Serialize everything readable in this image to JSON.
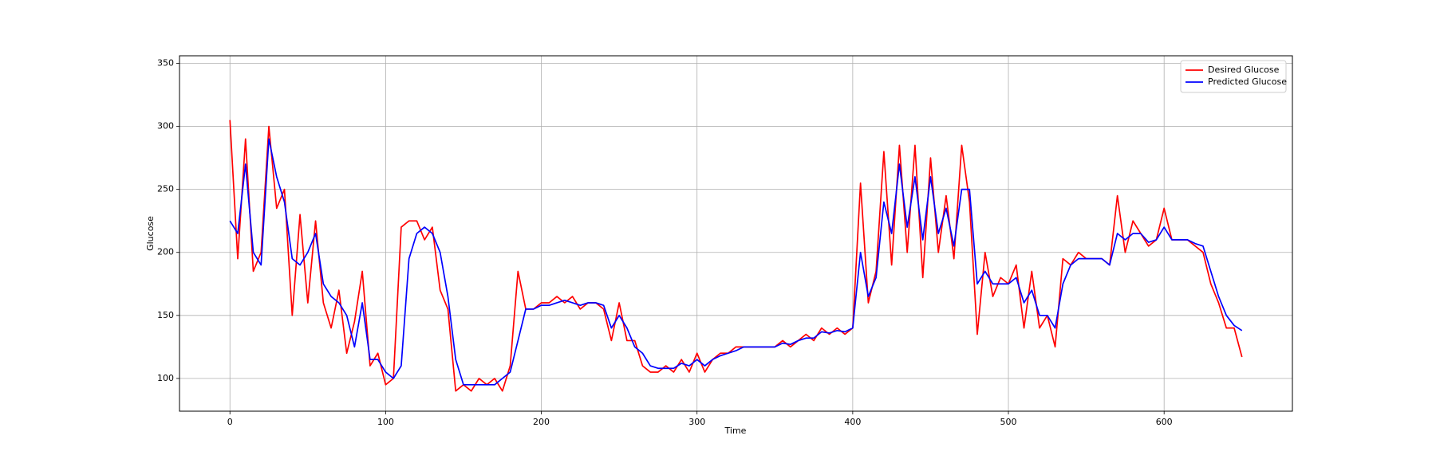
{
  "chart_data": {
    "type": "line",
    "xlabel": "Time",
    "ylabel": "Glucose",
    "x": [
      0,
      5,
      10,
      15,
      20,
      25,
      30,
      35,
      40,
      45,
      50,
      55,
      60,
      65,
      70,
      75,
      80,
      85,
      90,
      95,
      100,
      105,
      110,
      115,
      120,
      125,
      130,
      135,
      140,
      145,
      150,
      155,
      160,
      165,
      170,
      175,
      180,
      185,
      190,
      195,
      200,
      205,
      210,
      215,
      220,
      225,
      230,
      235,
      240,
      245,
      250,
      255,
      260,
      265,
      270,
      275,
      280,
      285,
      290,
      295,
      300,
      305,
      310,
      315,
      320,
      325,
      330,
      335,
      340,
      345,
      350,
      355,
      360,
      365,
      370,
      375,
      380,
      385,
      390,
      395,
      400,
      405,
      410,
      415,
      420,
      425,
      430,
      435,
      440,
      445,
      450,
      455,
      460,
      465,
      470,
      475,
      480,
      485,
      490,
      495,
      500,
      505,
      510,
      515,
      520,
      525,
      530,
      535,
      540,
      545,
      550,
      555,
      560,
      565,
      570,
      575,
      580,
      585,
      590,
      595,
      600,
      605,
      610,
      615,
      620,
      625,
      630,
      635,
      640,
      645,
      650
    ],
    "series": [
      {
        "name": "Desired Glucose",
        "color": "#ff0000",
        "values": [
          305,
          195,
          290,
          185,
          200,
          300,
          235,
          250,
          150,
          230,
          160,
          225,
          160,
          140,
          170,
          120,
          145,
          185,
          110,
          120,
          95,
          100,
          220,
          225,
          225,
          210,
          220,
          170,
          155,
          90,
          95,
          90,
          100,
          95,
          100,
          90,
          110,
          185,
          155,
          155,
          160,
          160,
          165,
          160,
          165,
          155,
          160,
          160,
          155,
          130,
          160,
          130,
          130,
          110,
          105,
          105,
          110,
          105,
          115,
          105,
          120,
          105,
          115,
          120,
          120,
          125,
          125,
          125,
          125,
          125,
          125,
          130,
          125,
          130,
          135,
          130,
          140,
          135,
          140,
          135,
          140,
          255,
          160,
          185,
          280,
          190,
          285,
          200,
          285,
          180,
          275,
          200,
          245,
          195,
          285,
          240,
          135,
          200,
          165,
          180,
          175,
          190,
          140,
          185,
          140,
          150,
          125,
          195,
          190,
          200,
          195,
          195,
          195,
          190,
          245,
          200,
          225,
          215,
          205,
          210,
          235,
          210,
          210,
          210,
          205,
          200,
          175,
          160,
          140,
          140,
          117
        ]
      },
      {
        "name": "Predicted Glucose",
        "color": "#0000ff",
        "values": [
          225,
          215,
          270,
          200,
          190,
          290,
          260,
          240,
          195,
          190,
          200,
          215,
          175,
          165,
          160,
          150,
          125,
          160,
          115,
          115,
          105,
          100,
          110,
          195,
          215,
          220,
          215,
          200,
          165,
          115,
          95,
          95,
          95,
          95,
          95,
          100,
          105,
          130,
          155,
          155,
          158,
          158,
          160,
          162,
          160,
          158,
          160,
          160,
          158,
          140,
          150,
          140,
          125,
          120,
          110,
          108,
          108,
          108,
          112,
          110,
          115,
          110,
          115,
          118,
          120,
          122,
          125,
          125,
          125,
          125,
          125,
          128,
          127,
          130,
          132,
          132,
          137,
          136,
          138,
          137,
          140,
          200,
          165,
          180,
          240,
          215,
          270,
          220,
          260,
          210,
          260,
          215,
          235,
          205,
          250,
          250,
          175,
          185,
          175,
          175,
          175,
          180,
          160,
          170,
          150,
          150,
          140,
          175,
          190,
          195,
          195,
          195,
          195,
          190,
          215,
          210,
          215,
          215,
          208,
          210,
          220,
          210,
          210,
          210,
          207,
          205,
          185,
          165,
          150,
          142,
          138
        ]
      }
    ],
    "xlim": [
      -32.4,
      682.4
    ],
    "ylim": [
      74,
      356
    ],
    "xticks": [
      0,
      100,
      200,
      300,
      400,
      500,
      600
    ],
    "yticks": [
      100,
      150,
      200,
      250,
      300,
      350
    ],
    "grid": true,
    "legend": "upper right"
  }
}
